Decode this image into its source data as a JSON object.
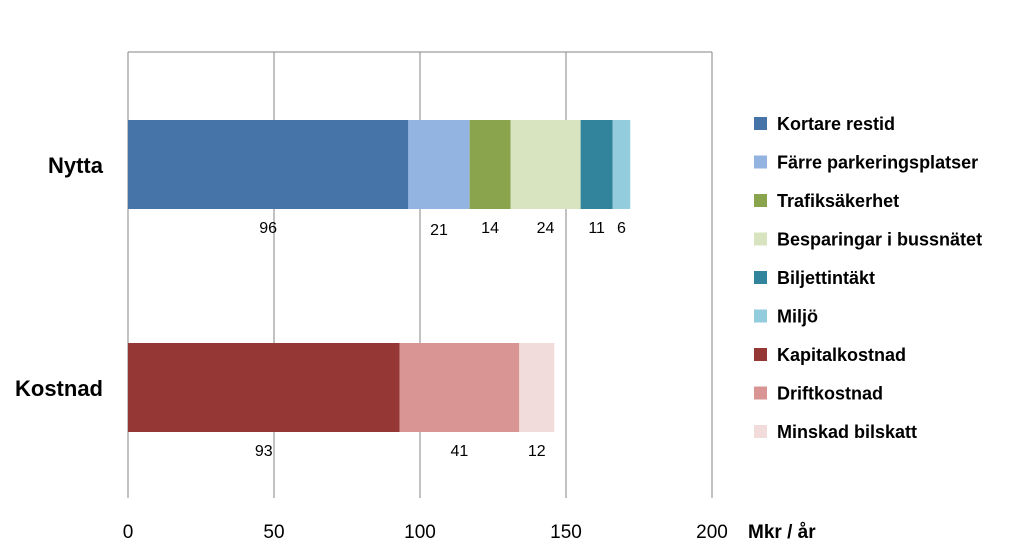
{
  "chart_data": {
    "type": "bar",
    "orientation": "horizontal",
    "stacked": true,
    "unit_label": "Mkr / år",
    "xlim": [
      0,
      200
    ],
    "x_ticks": [
      "0",
      "50",
      "100",
      "150",
      "200"
    ],
    "grid": true,
    "legend_position": "right",
    "categories": [
      "Nytta",
      "Kostnad"
    ],
    "series": [
      {
        "name": "Kortare restid",
        "category": "Nytta",
        "value": 96,
        "label": "96",
        "color": "#4674A8"
      },
      {
        "name": "Färre parkeringsplatser",
        "category": "Nytta",
        "value": 21,
        "label": "21",
        "color": "#93B3E0"
      },
      {
        "name": "Trafiksäkerhet",
        "category": "Nytta",
        "value": 14,
        "label": "14",
        "color": "#8AA44D"
      },
      {
        "name": "Besparingar i bussnätet",
        "category": "Nytta",
        "value": 24,
        "label": "24",
        "color": "#D7E4BF"
      },
      {
        "name": "Biljettintäkt",
        "category": "Nytta",
        "value": 11,
        "label": "11",
        "color": "#31849B"
      },
      {
        "name": "Miljö",
        "category": "Nytta",
        "value": 6,
        "label": "6",
        "color": "#93CDDD"
      },
      {
        "name": "Kapitalkostnad",
        "category": "Kostnad",
        "value": 93,
        "label": "93",
        "color": "#953735"
      },
      {
        "name": "Driftkostnad",
        "category": "Kostnad",
        "value": 41,
        "label": "41",
        "color": "#D99594"
      },
      {
        "name": "Minskad bilskatt",
        "category": "Kostnad",
        "value": 12,
        "label": "12",
        "color": "#F2DCDB"
      }
    ]
  }
}
